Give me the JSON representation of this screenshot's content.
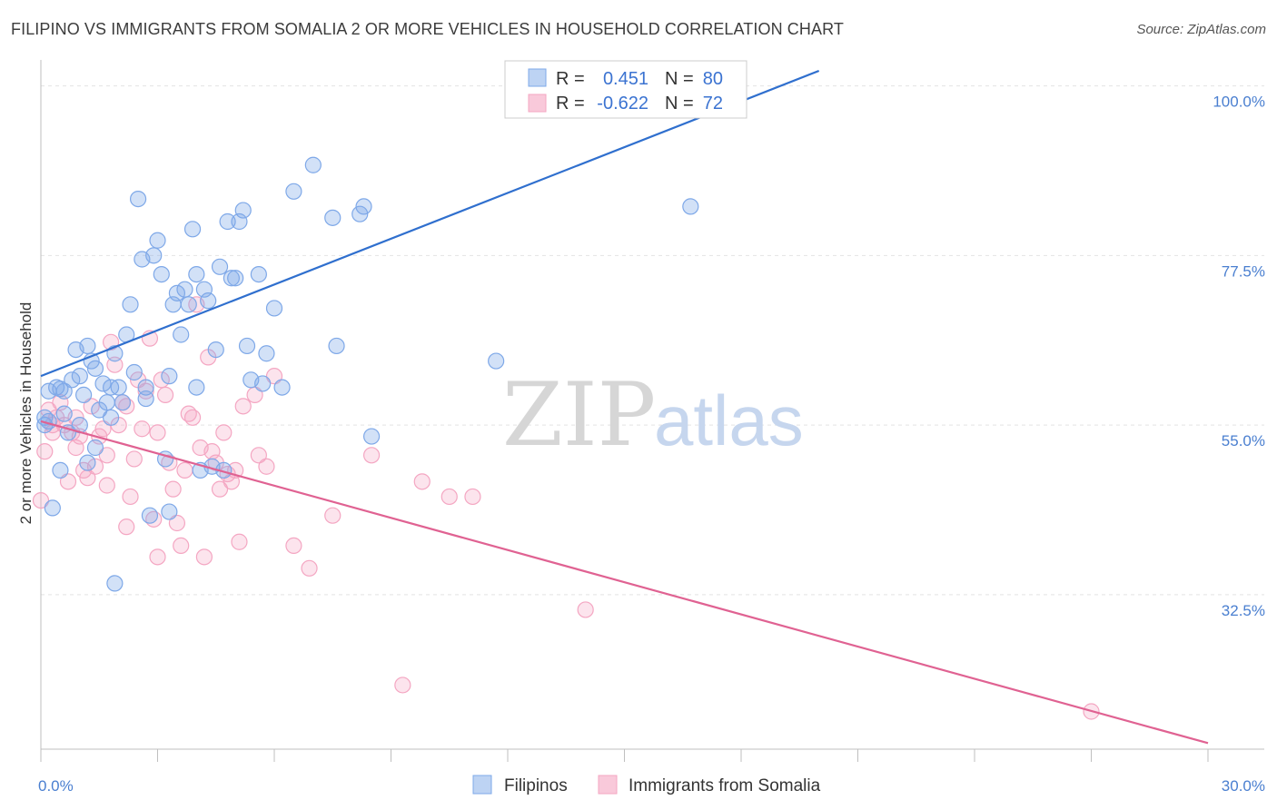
{
  "title": "FILIPINO VS IMMIGRANTS FROM SOMALIA 2 OR MORE VEHICLES IN HOUSEHOLD CORRELATION CHART",
  "source": "Source: ZipAtlas.com",
  "watermark": {
    "zip": "ZIP",
    "atlas": "atlas"
  },
  "legend": {
    "r_label": "R =",
    "n_label": "N =",
    "rows": [
      {
        "r": "0.451",
        "n": "80"
      },
      {
        "r": "-0.622",
        "n": "72"
      }
    ]
  },
  "chart_data": {
    "type": "scatter",
    "ylabel": "2 or more Vehicles in Household",
    "xlabel": "",
    "xlim": [
      0,
      30
    ],
    "ylim": [
      12,
      102
    ],
    "x_tick_labels": [
      {
        "value": 0,
        "label": "0.0%"
      },
      {
        "value": 30,
        "label": "30.0%"
      }
    ],
    "y_tick_labels": [
      {
        "value": 100,
        "label": "100.0%"
      },
      {
        "value": 77.5,
        "label": "77.5%"
      },
      {
        "value": 55,
        "label": "55.0%"
      },
      {
        "value": 32.5,
        "label": "32.5%"
      }
    ],
    "grid": true,
    "legend_position": "top-center",
    "series": [
      {
        "name": "Filipinos",
        "color": "#7ea8e8",
        "line_color": "#2f6fce",
        "trend": {
          "x0": 0,
          "y0": 61.5,
          "x1": 20,
          "y1": 102
        },
        "points": [
          [
            0.1,
            56
          ],
          [
            0.2,
            55.5
          ],
          [
            0.1,
            55
          ],
          [
            0.3,
            44
          ],
          [
            0.2,
            59.5
          ],
          [
            0.4,
            60
          ],
          [
            0.5,
            59.8
          ],
          [
            0.6,
            59.5
          ],
          [
            0.6,
            56.5
          ],
          [
            0.5,
            49
          ],
          [
            0.8,
            61
          ],
          [
            0.9,
            65
          ],
          [
            1.0,
            61.5
          ],
          [
            1.1,
            59
          ],
          [
            1.2,
            65.5
          ],
          [
            1.3,
            63.5
          ],
          [
            1.4,
            62.5
          ],
          [
            1.5,
            57
          ],
          [
            1.6,
            60.5
          ],
          [
            1.7,
            58
          ],
          [
            1.8,
            60
          ],
          [
            1.9,
            64.5
          ],
          [
            1.4,
            52
          ],
          [
            1.2,
            50
          ],
          [
            1.9,
            34
          ],
          [
            2.0,
            60
          ],
          [
            2.1,
            58
          ],
          [
            2.2,
            67
          ],
          [
            2.3,
            71
          ],
          [
            2.4,
            62
          ],
          [
            2.5,
            85
          ],
          [
            2.6,
            77
          ],
          [
            2.7,
            58.5
          ],
          [
            2.8,
            43
          ],
          [
            2.9,
            77.5
          ],
          [
            3.0,
            79.5
          ],
          [
            3.1,
            75
          ],
          [
            3.2,
            50.5
          ],
          [
            3.3,
            43.5
          ],
          [
            3.4,
            71
          ],
          [
            3.5,
            72.5
          ],
          [
            3.6,
            67
          ],
          [
            3.7,
            73
          ],
          [
            3.8,
            71
          ],
          [
            3.9,
            81
          ],
          [
            4.0,
            75
          ],
          [
            4.1,
            49
          ],
          [
            4.2,
            73
          ],
          [
            4.3,
            71.5
          ],
          [
            4.4,
            49.5
          ],
          [
            4.5,
            65
          ],
          [
            4.6,
            76
          ],
          [
            4.7,
            49
          ],
          [
            4.8,
            82
          ],
          [
            4.9,
            74.5
          ],
          [
            5.0,
            74.5
          ],
          [
            5.1,
            82
          ],
          [
            5.2,
            83.5
          ],
          [
            5.3,
            65.5
          ],
          [
            5.4,
            61
          ],
          [
            5.6,
            75
          ],
          [
            5.8,
            64.5
          ],
          [
            6.0,
            70.5
          ],
          [
            5.7,
            60.5
          ],
          [
            6.5,
            86
          ],
          [
            7.0,
            89.5
          ],
          [
            6.2,
            60
          ],
          [
            7.5,
            82.5
          ],
          [
            7.6,
            65.5
          ],
          [
            8.2,
            83
          ],
          [
            8.3,
            84
          ],
          [
            8.5,
            53.5
          ],
          [
            11.7,
            63.5
          ],
          [
            16.7,
            84
          ],
          [
            3.3,
            61.5
          ],
          [
            4.0,
            60
          ],
          [
            1.0,
            55
          ],
          [
            0.7,
            54
          ],
          [
            2.7,
            60
          ],
          [
            1.8,
            56
          ]
        ]
      },
      {
        "name": "Immigrants from Somalia",
        "color": "#f4a6c2",
        "line_color": "#e06292",
        "trend": {
          "x0": 0,
          "y0": 55.5,
          "x1": 30,
          "y1": 12.8
        },
        "points": [
          [
            0.0,
            45
          ],
          [
            0.1,
            51.5
          ],
          [
            0.2,
            57
          ],
          [
            0.3,
            54
          ],
          [
            0.4,
            56
          ],
          [
            0.5,
            58
          ],
          [
            0.6,
            55
          ],
          [
            0.7,
            47.5
          ],
          [
            0.8,
            54
          ],
          [
            0.9,
            52
          ],
          [
            1.0,
            53.5
          ],
          [
            1.1,
            49
          ],
          [
            1.2,
            48
          ],
          [
            1.3,
            57.5
          ],
          [
            1.4,
            49.5
          ],
          [
            1.5,
            53.5
          ],
          [
            1.6,
            54.5
          ],
          [
            1.7,
            51
          ],
          [
            1.8,
            66
          ],
          [
            1.9,
            63
          ],
          [
            2.0,
            55
          ],
          [
            2.1,
            58
          ],
          [
            2.2,
            57.5
          ],
          [
            2.3,
            45.5
          ],
          [
            2.4,
            50.5
          ],
          [
            2.5,
            61
          ],
          [
            2.6,
            54.5
          ],
          [
            2.7,
            59.5
          ],
          [
            2.8,
            66.5
          ],
          [
            2.9,
            42.5
          ],
          [
            3.0,
            54
          ],
          [
            3.1,
            61
          ],
          [
            3.2,
            59
          ],
          [
            3.3,
            50
          ],
          [
            3.4,
            46.5
          ],
          [
            3.5,
            42
          ],
          [
            3.6,
            39
          ],
          [
            3.7,
            49
          ],
          [
            3.8,
            56.5
          ],
          [
            3.9,
            56
          ],
          [
            4.0,
            71
          ],
          [
            4.1,
            52
          ],
          [
            4.2,
            37.5
          ],
          [
            4.3,
            64
          ],
          [
            4.4,
            51.5
          ],
          [
            4.5,
            50
          ],
          [
            4.6,
            46.5
          ],
          [
            4.7,
            54
          ],
          [
            4.8,
            48.5
          ],
          [
            4.9,
            47.5
          ],
          [
            5.0,
            49
          ],
          [
            5.1,
            39.5
          ],
          [
            5.2,
            57.5
          ],
          [
            5.5,
            59
          ],
          [
            5.6,
            51
          ],
          [
            5.8,
            49.5
          ],
          [
            6.0,
            61.5
          ],
          [
            6.5,
            39
          ],
          [
            6.9,
            36
          ],
          [
            7.5,
            43
          ],
          [
            8.5,
            51
          ],
          [
            9.3,
            20.5
          ],
          [
            9.8,
            47.5
          ],
          [
            10.5,
            45.5
          ],
          [
            11.1,
            45.5
          ],
          [
            14.0,
            30.5
          ],
          [
            27.0,
            17
          ],
          [
            0.3,
            55
          ],
          [
            1.7,
            47
          ],
          [
            0.9,
            56
          ],
          [
            2.2,
            41.5
          ],
          [
            3.0,
            37.5
          ]
        ]
      }
    ]
  }
}
